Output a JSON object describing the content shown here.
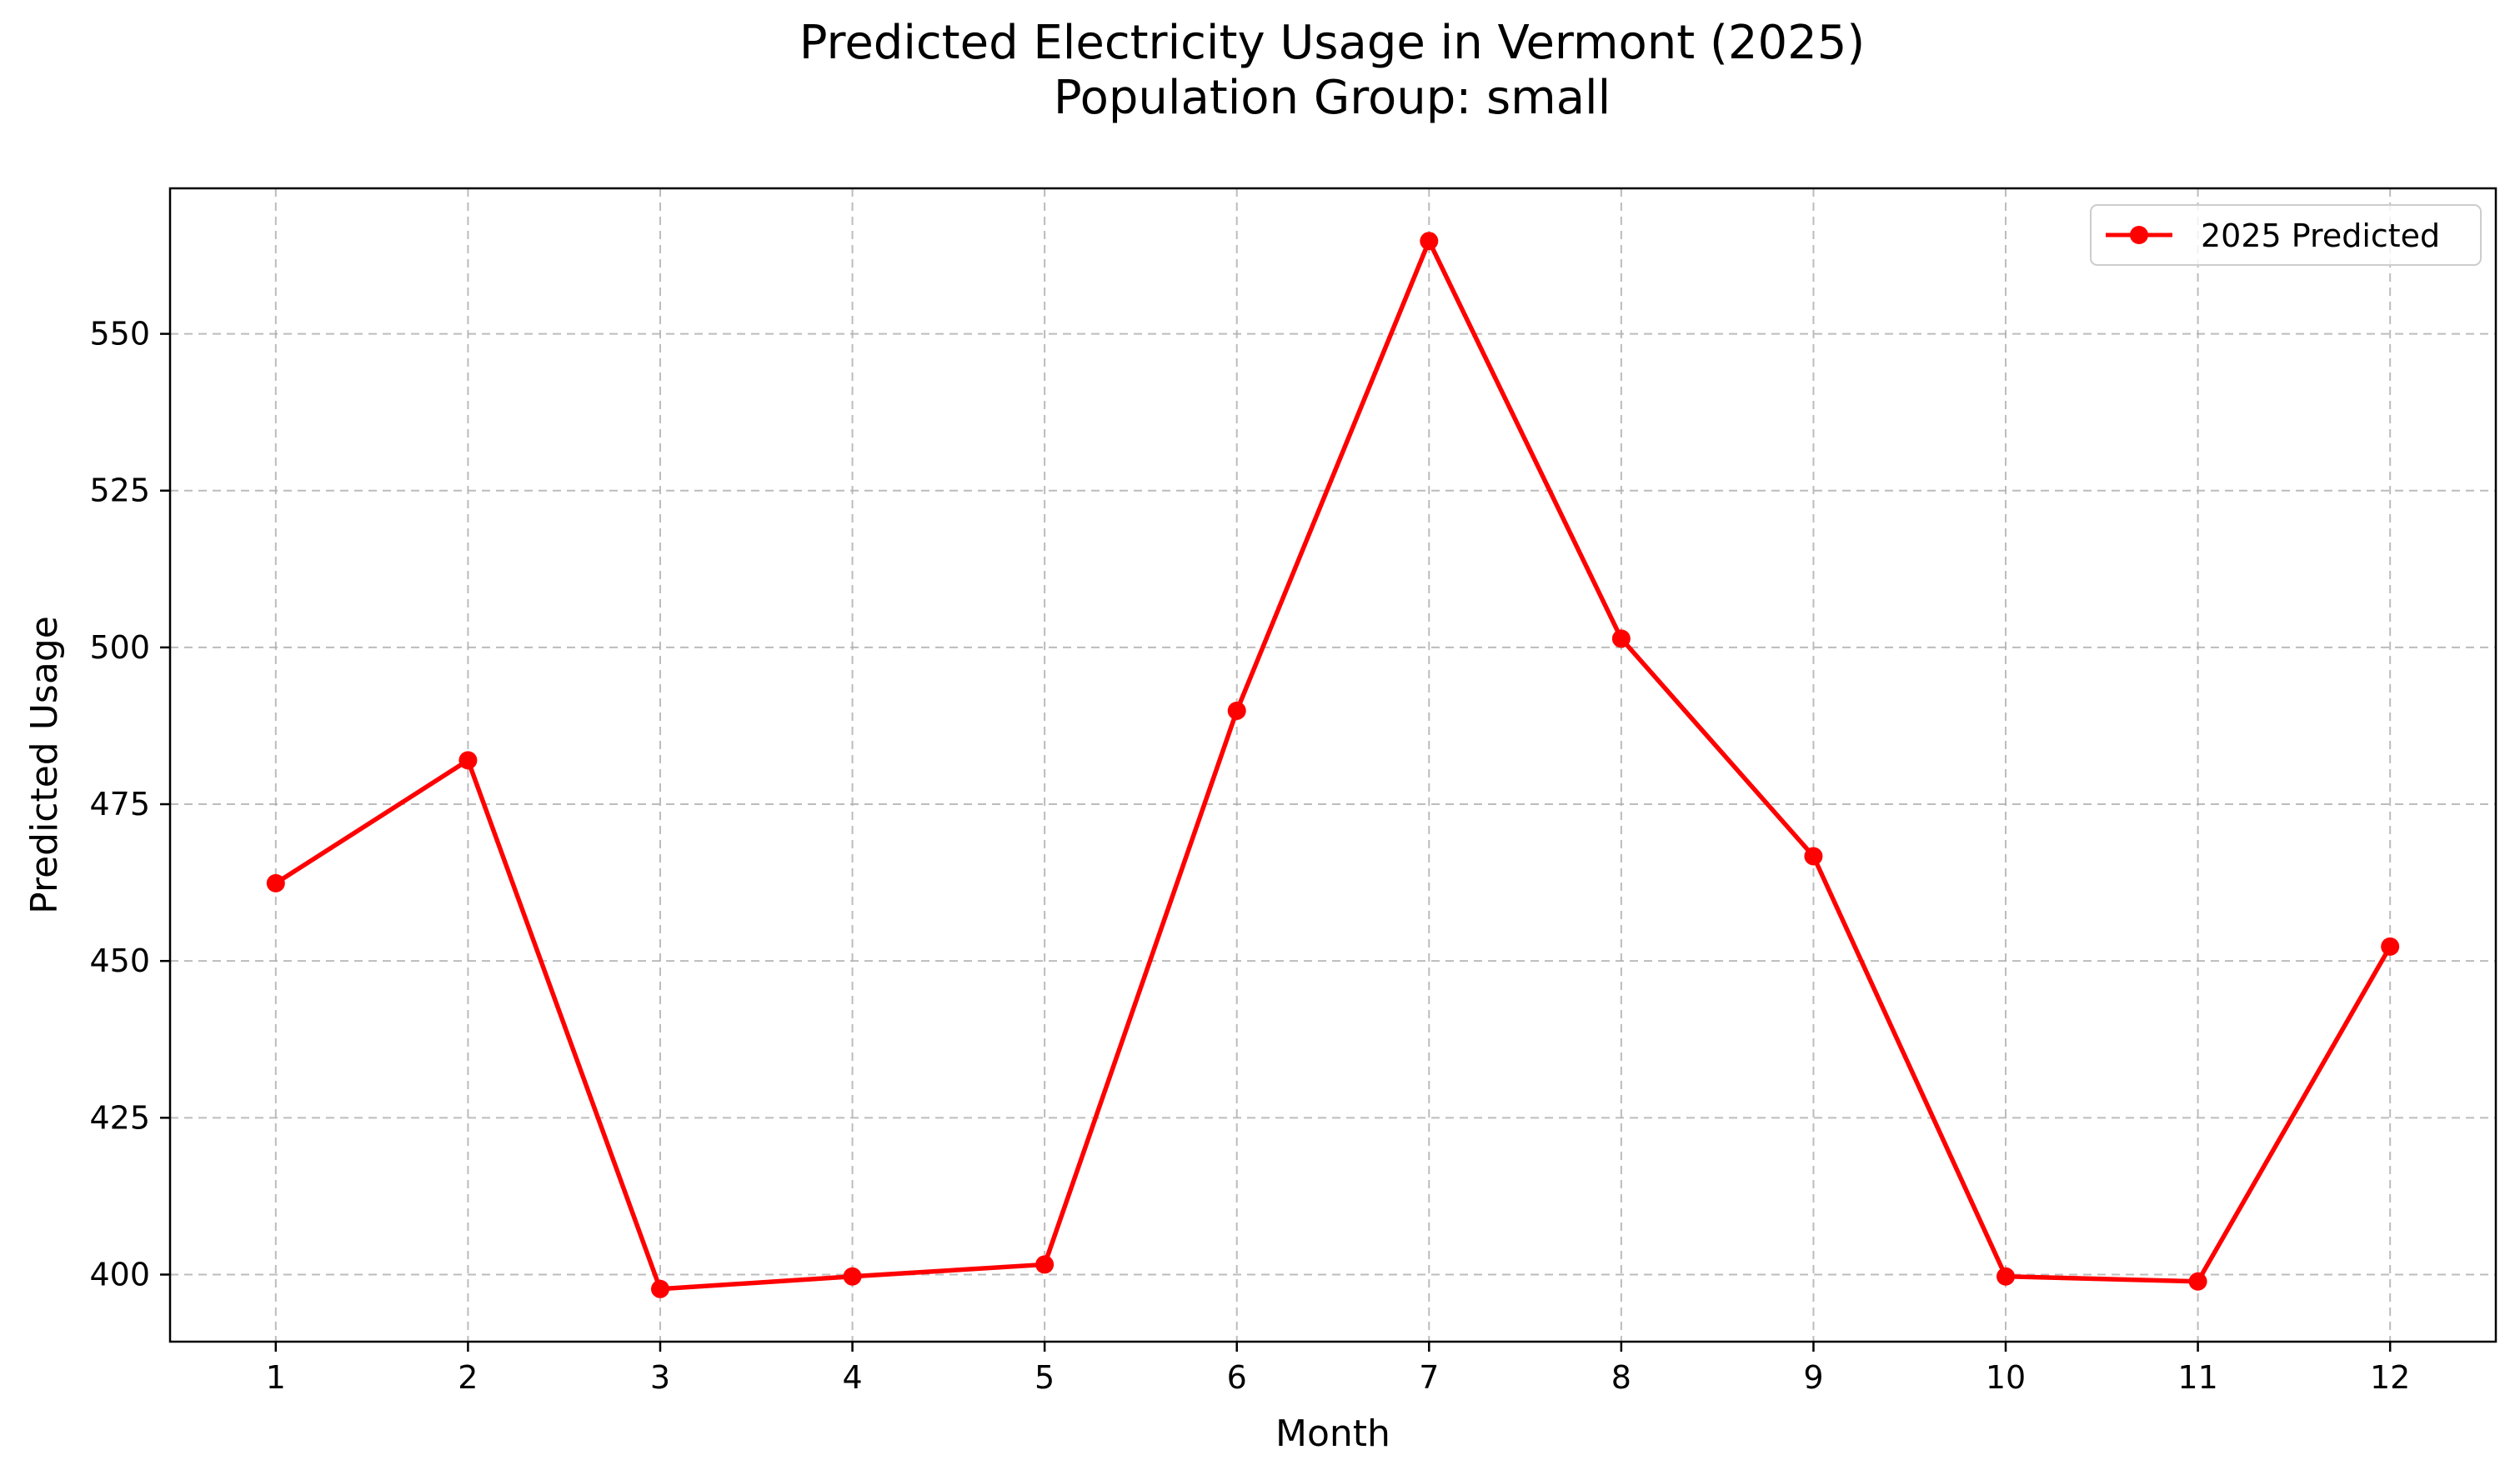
{
  "chart_data": {
    "type": "line",
    "title": "Predicted Electricity Usage in Vermont (2025)",
    "subtitle": "Population Group: small",
    "xlabel": "Month",
    "ylabel": "Predicted Usage",
    "x": [
      1,
      2,
      3,
      4,
      5,
      6,
      7,
      8,
      9,
      10,
      11,
      12
    ],
    "series": [
      {
        "name": "2025 Predicted",
        "values": [
          462.4,
          482.0,
          397.7,
          399.7,
          401.6,
          489.9,
          564.8,
          501.4,
          466.7,
          399.7,
          398.9,
          452.3
        ],
        "color": "#ff0000",
        "marker": "circle"
      }
    ],
    "xticks": [
      1,
      2,
      3,
      4,
      5,
      6,
      7,
      8,
      9,
      10,
      11,
      12
    ],
    "yticks": [
      400,
      425,
      450,
      475,
      500,
      525,
      550
    ],
    "xlim": [
      0.45,
      12.55
    ],
    "ylim": [
      389.3,
      573.2
    ],
    "grid": true,
    "grid_color": "#b0b0b0",
    "legend_position": "upper right"
  }
}
